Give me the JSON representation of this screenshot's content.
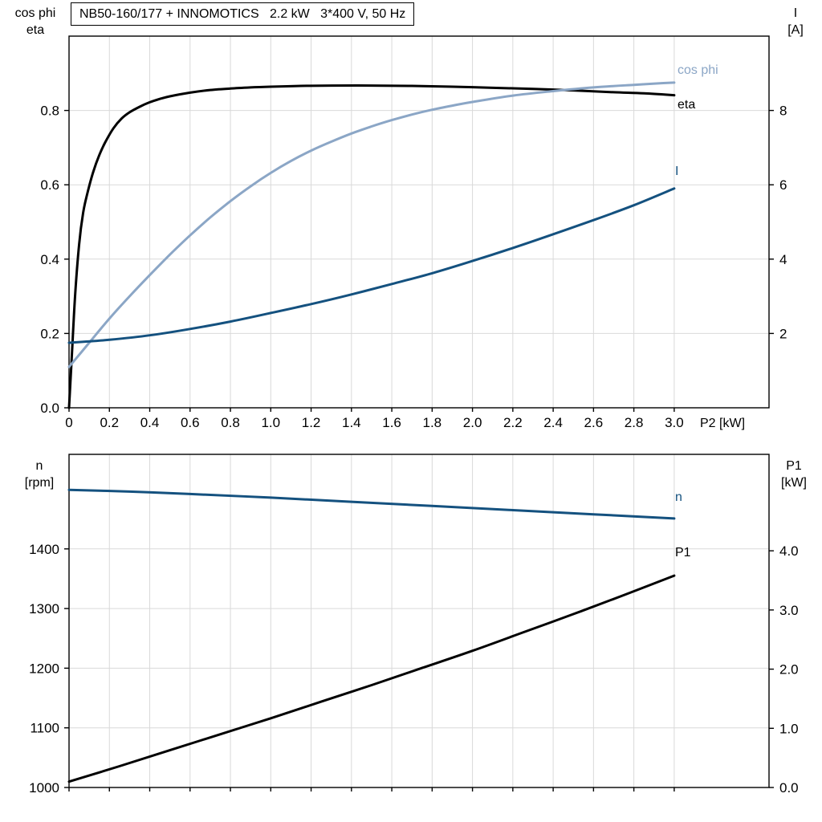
{
  "title_box": "NB50-160/177 + INNOMOTICS   2.2 kW   3*400 V, 50 Hz",
  "axis_titles": {
    "top_left_line1": "cos phi",
    "top_left_line2": "eta",
    "top_right_line1": "I",
    "top_right_line2": "[A]",
    "bottom_left_line1": "n",
    "bottom_left_line2": "[rpm]",
    "bottom_right_line1": "P1",
    "bottom_right_line2": "[kW]",
    "x_axis": "P2 [kW]"
  },
  "curve_labels": {
    "cos_phi": "cos phi",
    "eta": "eta",
    "current": "I",
    "speed": "n",
    "power": "P1"
  },
  "colors": {
    "black": "#000000",
    "light_blue": "#8ba6c6",
    "dark_blue": "#14517f",
    "grid": "#d9d9d9",
    "axis": "#000000"
  },
  "chart_data": [
    {
      "id": "top",
      "type": "line",
      "title": "NB50-160/177 + INNOMOTICS   2.2 kW   3*400 V, 50 Hz",
      "grid": true,
      "x_axis": {
        "label": "P2 [kW]",
        "min": 0,
        "max": 3.47,
        "show_labels": true,
        "ticks": [
          0,
          0.2,
          0.4,
          0.6,
          0.8,
          1.0,
          1.2,
          1.4,
          1.6,
          1.8,
          2.0,
          2.2,
          2.4,
          2.6,
          2.8,
          3.0
        ],
        "tick_labels": [
          "0",
          "0.2",
          "0.4",
          "0.6",
          "0.8",
          "1.0",
          "1.2",
          "1.4",
          "1.6",
          "1.8",
          "2.0",
          "2.2",
          "2.4",
          "2.6",
          "2.8",
          "3.0"
        ]
      },
      "left_axis": {
        "label": "cos phi / eta",
        "min": 0,
        "max": 1.0,
        "ticks": [
          0,
          0.2,
          0.4,
          0.6,
          0.8
        ],
        "tick_labels": [
          "0.0",
          "0.2",
          "0.4",
          "0.6",
          "0.8"
        ]
      },
      "right_axis": {
        "label": "I [A]",
        "min": 0,
        "max": 10,
        "ticks": [
          2,
          4,
          6,
          8
        ],
        "tick_labels": [
          "2",
          "4",
          "6",
          "8"
        ]
      },
      "series": [
        {
          "name": "eta",
          "axis": "left",
          "color_key": "black",
          "points": [
            [
              0,
              0
            ],
            [
              0.012,
              0.12
            ],
            [
              0.03,
              0.3
            ],
            [
              0.05,
              0.44
            ],
            [
              0.07,
              0.525
            ],
            [
              0.09,
              0.575
            ],
            [
              0.12,
              0.635
            ],
            [
              0.15,
              0.68
            ],
            [
              0.18,
              0.715
            ],
            [
              0.22,
              0.752
            ],
            [
              0.26,
              0.778
            ],
            [
              0.3,
              0.795
            ],
            [
              0.35,
              0.81
            ],
            [
              0.4,
              0.822
            ],
            [
              0.45,
              0.831
            ],
            [
              0.5,
              0.838
            ],
            [
              0.6,
              0.848
            ],
            [
              0.7,
              0.855
            ],
            [
              0.8,
              0.859
            ],
            [
              0.9,
              0.862
            ],
            [
              1.0,
              0.864
            ],
            [
              1.15,
              0.866
            ],
            [
              1.3,
              0.867
            ],
            [
              1.5,
              0.867
            ],
            [
              1.7,
              0.866
            ],
            [
              1.9,
              0.864
            ],
            [
              2.1,
              0.861
            ],
            [
              2.3,
              0.858
            ],
            [
              2.5,
              0.854
            ],
            [
              2.7,
              0.849
            ],
            [
              2.85,
              0.846
            ],
            [
              3.0,
              0.841
            ]
          ]
        },
        {
          "name": "cos phi",
          "axis": "left",
          "color_key": "light_blue",
          "points": [
            [
              0,
              0.11
            ],
            [
              0.1,
              0.175
            ],
            [
              0.2,
              0.24
            ],
            [
              0.3,
              0.3
            ],
            [
              0.4,
              0.357
            ],
            [
              0.5,
              0.412
            ],
            [
              0.6,
              0.464
            ],
            [
              0.7,
              0.512
            ],
            [
              0.8,
              0.556
            ],
            [
              0.9,
              0.596
            ],
            [
              1.0,
              0.632
            ],
            [
              1.1,
              0.664
            ],
            [
              1.2,
              0.692
            ],
            [
              1.3,
              0.716
            ],
            [
              1.4,
              0.738
            ],
            [
              1.5,
              0.757
            ],
            [
              1.6,
              0.774
            ],
            [
              1.7,
              0.789
            ],
            [
              1.8,
              0.802
            ],
            [
              1.9,
              0.813
            ],
            [
              2.0,
              0.823
            ],
            [
              2.2,
              0.84
            ],
            [
              2.4,
              0.852
            ],
            [
              2.6,
              0.862
            ],
            [
              2.8,
              0.869
            ],
            [
              3.0,
              0.875
            ]
          ]
        },
        {
          "name": "I",
          "axis": "right",
          "color_key": "dark_blue",
          "points": [
            [
              0,
              1.75
            ],
            [
              0.2,
              1.83
            ],
            [
              0.4,
              1.95
            ],
            [
              0.6,
              2.12
            ],
            [
              0.8,
              2.32
            ],
            [
              1.0,
              2.55
            ],
            [
              1.2,
              2.79
            ],
            [
              1.4,
              3.05
            ],
            [
              1.6,
              3.33
            ],
            [
              1.8,
              3.62
            ],
            [
              2.0,
              3.95
            ],
            [
              2.2,
              4.3
            ],
            [
              2.4,
              4.67
            ],
            [
              2.6,
              5.05
            ],
            [
              2.8,
              5.45
            ],
            [
              3.0,
              5.9
            ]
          ]
        }
      ]
    },
    {
      "id": "bottom",
      "type": "line",
      "title": "",
      "grid": true,
      "x_axis": {
        "label": "",
        "min": 0,
        "max": 3.47,
        "show_labels": false,
        "ticks": [
          0,
          0.2,
          0.4,
          0.6,
          0.8,
          1.0,
          1.2,
          1.4,
          1.6,
          1.8,
          2.0,
          2.2,
          2.4,
          2.6,
          2.8,
          3.0
        ],
        "tick_labels": []
      },
      "left_axis": {
        "label": "n [rpm]",
        "min": 1000,
        "max": 1558.5,
        "ticks": [
          1000,
          1100,
          1200,
          1300,
          1400
        ],
        "tick_labels": [
          "1000",
          "1100",
          "1200",
          "1300",
          "1400"
        ]
      },
      "right_axis": {
        "label": "P1 [kW]",
        "min": 0,
        "max": 5.63,
        "ticks": [
          0,
          1,
          2,
          3,
          4
        ],
        "tick_labels": [
          "0.0",
          "1.0",
          "2.0",
          "3.0",
          "4.0"
        ]
      },
      "series": [
        {
          "name": "n",
          "axis": "left",
          "color_key": "dark_blue",
          "points": [
            [
              0,
              1499
            ],
            [
              0.3,
              1496
            ],
            [
              0.6,
              1492
            ],
            [
              1.0,
              1486
            ],
            [
              1.4,
              1479
            ],
            [
              1.8,
              1472
            ],
            [
              2.2,
              1465
            ],
            [
              2.6,
              1458
            ],
            [
              3.0,
              1451
            ]
          ]
        },
        {
          "name": "P1",
          "axis": "right",
          "color_key": "black",
          "points": [
            [
              0,
              0.1
            ],
            [
              0.25,
              0.36
            ],
            [
              0.5,
              0.63
            ],
            [
              0.75,
              0.9
            ],
            [
              1.0,
              1.17
            ],
            [
              1.25,
              1.45
            ],
            [
              1.5,
              1.73
            ],
            [
              1.75,
              2.02
            ],
            [
              2.0,
              2.31
            ],
            [
              2.25,
              2.62
            ],
            [
              2.5,
              2.93
            ],
            [
              2.75,
              3.25
            ],
            [
              3.0,
              3.58
            ]
          ]
        }
      ]
    }
  ]
}
